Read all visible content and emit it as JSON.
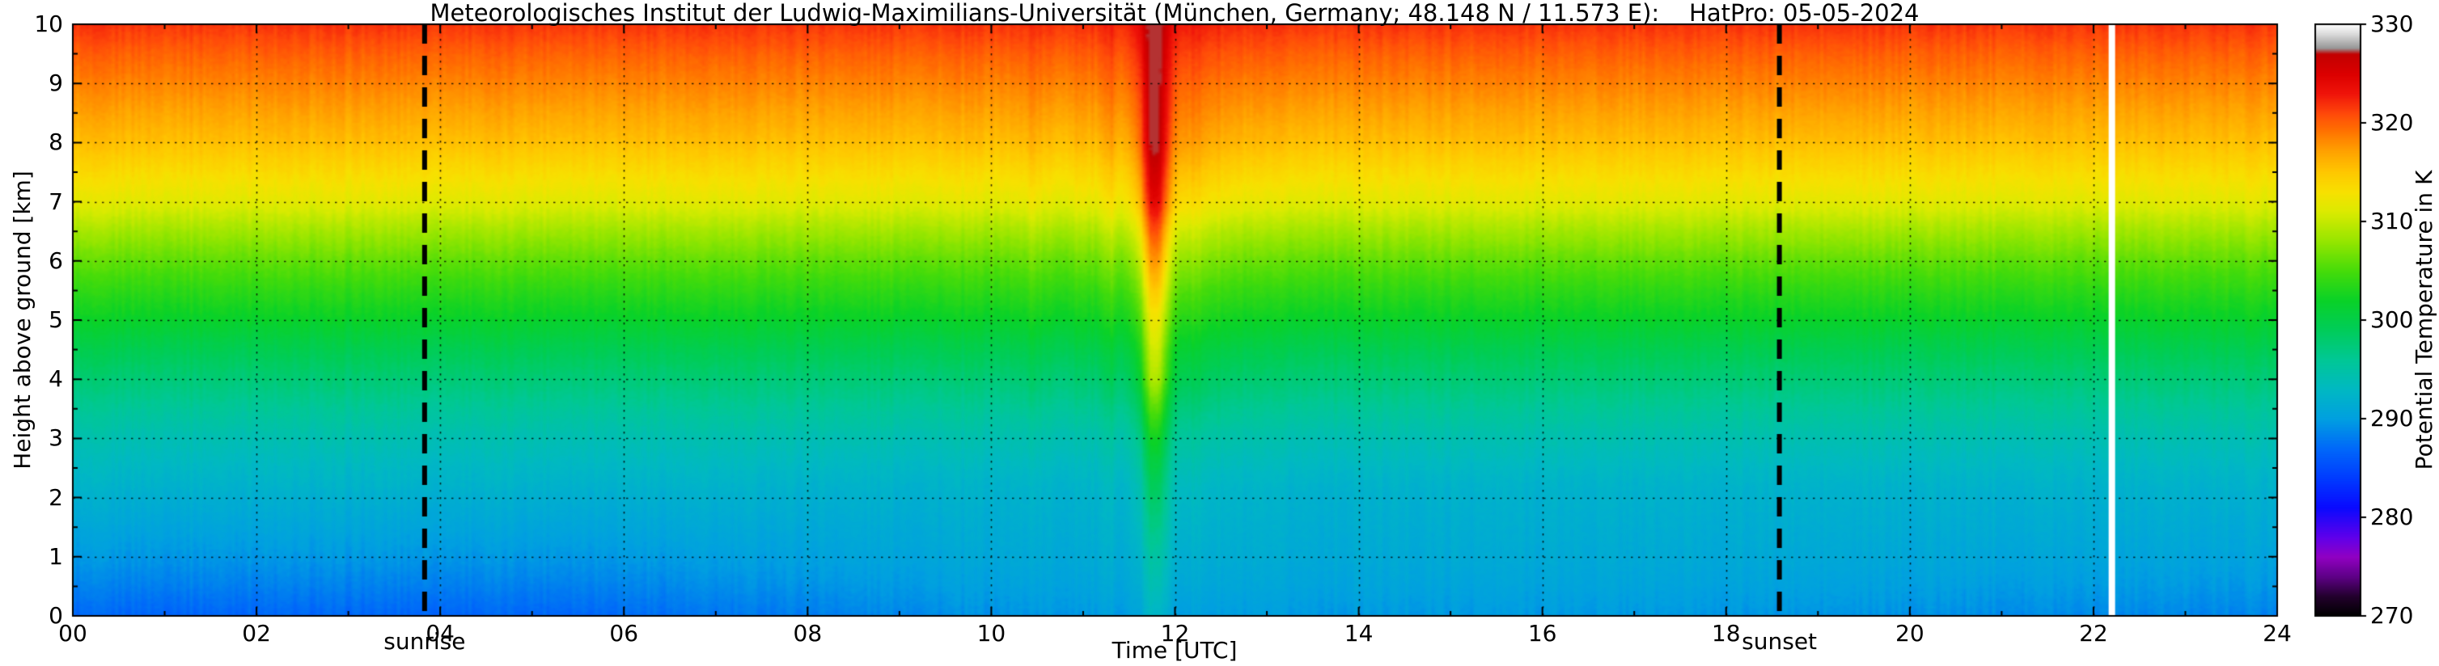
{
  "chart_data": {
    "type": "heatmap",
    "title": "Meteorologisches Institut der Ludwig-Maximilians-Universität (München, Germany; 48.148 N / 11.573 E):    HatPro: 05-05-2024",
    "xlabel": "Time [UTC]",
    "ylabel": "Height above ground [km]",
    "colorbar_label": "Potential Temperature in K",
    "x_range": [
      0,
      24
    ],
    "y_range": [
      0,
      10
    ],
    "x_ticks": [
      0,
      2,
      4,
      6,
      8,
      10,
      12,
      14,
      16,
      18,
      20,
      22,
      24
    ],
    "x_tick_labels": [
      "00",
      "02",
      "04",
      "06",
      "08",
      "10",
      "12",
      "14",
      "16",
      "18",
      "20",
      "22",
      "24"
    ],
    "x_minor_step": 1,
    "y_ticks": [
      0,
      1,
      2,
      3,
      4,
      5,
      6,
      7,
      8,
      9,
      10
    ],
    "y_tick_labels": [
      "0",
      "1",
      "2",
      "3",
      "4",
      "5",
      "6",
      "7",
      "8",
      "9",
      "10"
    ],
    "y_minor_step": 0.5,
    "colorbar_range": [
      270,
      330
    ],
    "colorbar_ticks": [
      270,
      280,
      290,
      300,
      310,
      320,
      330
    ],
    "grid": "dotted",
    "legend_position": "none",
    "events": [
      {
        "label": "sunrise",
        "time": 3.83
      },
      {
        "label": "sunset",
        "time": 18.58
      }
    ],
    "missing_data_times": [
      22.2
    ],
    "colormap": [
      [
        270,
        [
          0,
          0,
          0
        ]
      ],
      [
        272,
        [
          35,
          0,
          45
        ]
      ],
      [
        274,
        [
          95,
          0,
          135
        ]
      ],
      [
        276,
        [
          145,
          0,
          195
        ]
      ],
      [
        278,
        [
          95,
          0,
          235
        ]
      ],
      [
        281,
        [
          10,
          10,
          255
        ]
      ],
      [
        284,
        [
          0,
          60,
          255
        ]
      ],
      [
        287,
        [
          0,
          105,
          250
        ]
      ],
      [
        290,
        [
          0,
          160,
          225
        ]
      ],
      [
        293,
        [
          0,
          185,
          195
        ]
      ],
      [
        296,
        [
          0,
          200,
          150
        ]
      ],
      [
        299,
        [
          0,
          205,
          90
        ]
      ],
      [
        302,
        [
          10,
          210,
          40
        ]
      ],
      [
        305,
        [
          70,
          220,
          10
        ]
      ],
      [
        308,
        [
          150,
          230,
          0
        ]
      ],
      [
        311,
        [
          220,
          235,
          0
        ]
      ],
      [
        313,
        [
          248,
          225,
          0
        ]
      ],
      [
        315,
        [
          255,
          200,
          0
        ]
      ],
      [
        317,
        [
          255,
          165,
          0
        ]
      ],
      [
        319,
        [
          255,
          120,
          0
        ]
      ],
      [
        321,
        [
          255,
          72,
          10
        ]
      ],
      [
        323,
        [
          240,
          20,
          10
        ]
      ],
      [
        325,
        [
          220,
          0,
          0
        ]
      ],
      [
        327,
        [
          195,
          0,
          0
        ]
      ],
      [
        327.6,
        [
          150,
          150,
          150
        ]
      ],
      [
        329,
        [
          218,
          218,
          218
        ]
      ],
      [
        330,
        [
          255,
          255,
          255
        ]
      ]
    ],
    "field_model": {
      "base_profile": [
        [
          0,
          287.2
        ],
        [
          0.5,
          288.6
        ],
        [
          1,
          289.8
        ],
        [
          1.5,
          290.8
        ],
        [
          2,
          291.8
        ],
        [
          2.5,
          292.9
        ],
        [
          3,
          294.2
        ],
        [
          3.5,
          295.8
        ],
        [
          4,
          297.6
        ],
        [
          4.5,
          299.5
        ],
        [
          5,
          301.8
        ],
        [
          5.5,
          303.8
        ],
        [
          6,
          306.0
        ],
        [
          6.5,
          308.5
        ],
        [
          7,
          311.5
        ],
        [
          7.5,
          313.5
        ],
        [
          8,
          315.5
        ],
        [
          8.5,
          317.0
        ],
        [
          9,
          318.5
        ],
        [
          9.5,
          320.0
        ],
        [
          10,
          321.8
        ]
      ],
      "diurnal": {
        "pre_dawn_offset": -0.4,
        "max_warming": 2.5,
        "rise_start": 4.2,
        "rise_end": 12,
        "flat_until": 17,
        "evening_drop": 1.2,
        "depth_km": 2.2
      },
      "plume": {
        "amp_profile": [
          [
            0,
            2.5
          ],
          [
            1,
            3.5
          ],
          [
            2,
            5.5
          ],
          [
            3,
            7
          ],
          [
            4,
            10
          ],
          [
            5,
            9
          ],
          [
            6,
            10
          ],
          [
            7,
            11
          ],
          [
            8,
            10.5
          ],
          [
            9,
            8
          ],
          [
            10,
            6
          ]
        ],
        "components": [
          {
            "center": 11.78,
            "sigma": 0.14,
            "scale": 1.0
          },
          {
            "center": 11.95,
            "sigma": 0.55,
            "scale": 0.22
          },
          {
            "center": 10.45,
            "sigma": 0.08,
            "scale": 0.1
          },
          {
            "center": 10.95,
            "sigma": 0.06,
            "scale": 0.07
          },
          {
            "center": 11.3,
            "sigma": 0.07,
            "scale": 0.09
          }
        ]
      },
      "noise": {
        "column_amp": 0.45,
        "cell_amp": 0.25
      },
      "value_cap": 327.2
    }
  }
}
